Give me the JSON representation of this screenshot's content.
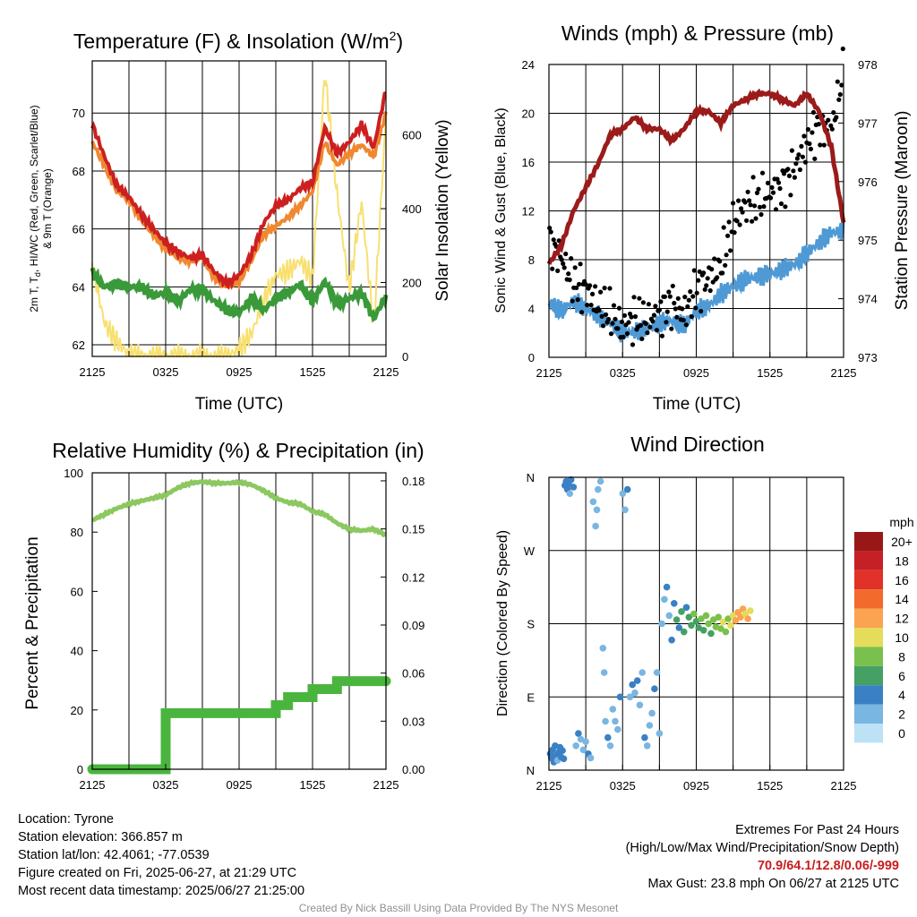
{
  "colors": {
    "red": "#cc2020",
    "orange": "#f08830",
    "green": "#3a9a3a",
    "scarlet": "#5cb848",
    "yellow": "#f8e070",
    "blue": "#4f9ad5",
    "maroon": "#9b1b1b",
    "rh_green": "#8cc860",
    "precip_green": "#4ab53e"
  },
  "chart_data": [
    {
      "id": "temperature",
      "type": "line",
      "title": "Temperature (F) & Insolation (W/m",
      "title_sup": "2",
      "title_close": ")",
      "xlabel": "Time (UTC)",
      "ylabel_line1": "2m T, T",
      "ylabel_sub": "d",
      "ylabel_line1_rest": ", HI/WC (Red, Green, Scarlet/Blue)",
      "ylabel_line2": "& 9m T (Orange)",
      "ylabel_right": "Solar Insolation (Yellow)",
      "x_ticks": [
        "2125",
        "0325",
        "0925",
        "1525",
        "2125"
      ],
      "ylim": [
        61.6,
        71.8
      ],
      "y_ticks": [
        62,
        64,
        66,
        68,
        70
      ],
      "y2lim": [
        0,
        800
      ],
      "y2_ticks": [
        0,
        200,
        400,
        600
      ],
      "hours": [
        0,
        1,
        2,
        3,
        4,
        5,
        6,
        7,
        8,
        9,
        10,
        11,
        12,
        13,
        14,
        15,
        16,
        17,
        18,
        19,
        20,
        21,
        22,
        23,
        24
      ],
      "series": [
        {
          "name": "2m T",
          "color_key": "red",
          "values": [
            69.6,
            68.5,
            67.5,
            67.1,
            66.5,
            66.0,
            65.5,
            65.2,
            65.0,
            65.1,
            64.5,
            64.1,
            64.4,
            65.1,
            66.2,
            66.8,
            67.0,
            67.4,
            67.6,
            69.5,
            68.6,
            69.0,
            69.6,
            68.8,
            70.8
          ]
        },
        {
          "name": "9m T",
          "color_key": "orange",
          "values": [
            69.0,
            68.2,
            67.3,
            67.0,
            66.3,
            65.8,
            65.3,
            65.0,
            64.9,
            65.0,
            64.3,
            64.0,
            64.2,
            64.9,
            65.8,
            66.1,
            66.4,
            66.8,
            67.3,
            69.0,
            68.2,
            68.6,
            68.9,
            68.5,
            70.0
          ]
        },
        {
          "name": "Td",
          "color_key": "green",
          "values": [
            64.5,
            64.0,
            64.1,
            64.0,
            64.0,
            63.7,
            63.8,
            63.5,
            63.9,
            63.9,
            63.5,
            63.2,
            63.1,
            63.6,
            63.2,
            63.6,
            63.8,
            64.1,
            63.5,
            64.2,
            63.4,
            63.6,
            63.8,
            62.9,
            63.7
          ]
        },
        {
          "name": "Solar",
          "color_key": "yellow",
          "values": [
            250,
            90,
            40,
            5,
            0,
            0,
            0,
            0,
            0,
            0,
            0,
            0,
            20,
            60,
            150,
            220,
            230,
            260,
            210,
            770,
            440,
            180,
            420,
            80,
            650
          ]
        }
      ]
    },
    {
      "id": "winds",
      "type": "line",
      "title": "Winds (mph) & Pressure (mb)",
      "xlabel": "Time (UTC)",
      "ylabel": "Sonic Wind & Gust (Blue, Black)",
      "ylabel_right": "Station Pressure (Maroon)",
      "x_ticks": [
        "2125",
        "0325",
        "0925",
        "1525",
        "2125"
      ],
      "ylim": [
        0,
        24
      ],
      "y_ticks": [
        0,
        4,
        8,
        12,
        16,
        20,
        24
      ],
      "y2lim": [
        973,
        978
      ],
      "y2_ticks": [
        973,
        974,
        975,
        976,
        977,
        978
      ],
      "hours": [
        0,
        1,
        2,
        3,
        4,
        5,
        6,
        7,
        8,
        9,
        10,
        11,
        12,
        13,
        14,
        15,
        16,
        17,
        18,
        19,
        20,
        21,
        22,
        23,
        24
      ],
      "series": [
        {
          "name": "Sonic Wind",
          "color_key": "blue",
          "values": [
            4.5,
            3.8,
            4.6,
            4.0,
            3.4,
            2.8,
            2.0,
            2.1,
            2.3,
            2.8,
            3.0,
            2.6,
            3.8,
            4.2,
            5.2,
            5.8,
            6.4,
            6.6,
            6.8,
            7.2,
            7.6,
            8.5,
            9.4,
            10.2,
            10.4
          ]
        },
        {
          "name": "Gust",
          "color_key": "gust",
          "values": [
            9.5,
            8.2,
            6.0,
            5.6,
            4.2,
            3.5,
            2.4,
            3.2,
            2.9,
            3.6,
            4.5,
            3.5,
            5.6,
            6.4,
            7.5,
            11.0,
            12.5,
            12.8,
            13.5,
            14.0,
            15.5,
            17.5,
            19.0,
            18.5,
            23.5
          ]
        },
        {
          "name": "Station Pressure",
          "color_key": "maroon",
          "values": [
            974.6,
            974.9,
            975.5,
            975.9,
            976.3,
            976.8,
            976.9,
            977.1,
            976.9,
            976.9,
            976.7,
            976.9,
            977.2,
            977.2,
            977.0,
            977.3,
            977.4,
            977.5,
            977.5,
            977.4,
            977.3,
            977.5,
            977.2,
            976.6,
            975.3
          ]
        }
      ]
    },
    {
      "id": "humidity",
      "type": "line",
      "title": "Relative Humidity (%) & Precipitation (in)",
      "ylabel": "Percent & Precipitation",
      "x_ticks": [
        "2125",
        "0325",
        "0925",
        "1525",
        "2125"
      ],
      "ylim": [
        0,
        100
      ],
      "y_ticks": [
        0,
        20,
        40,
        60,
        80,
        100
      ],
      "y2lim": [
        0,
        0.185
      ],
      "y2_ticks": [
        "0.00",
        "0.03",
        "0.06",
        "0.09",
        "0.12",
        "0.15",
        "0.18"
      ],
      "hours": [
        0,
        1,
        2,
        3,
        4,
        5,
        6,
        7,
        8,
        9,
        10,
        11,
        12,
        13,
        14,
        15,
        16,
        17,
        18,
        19,
        20,
        21,
        22,
        23,
        24
      ],
      "series": [
        {
          "name": "Relative Humidity",
          "color_key": "rh_green",
          "values": [
            84,
            86,
            88,
            89.5,
            90.5,
            91.5,
            92.5,
            95,
            96.5,
            97,
            96.5,
            96.5,
            96.8,
            96,
            94,
            91.5,
            90,
            89.5,
            87,
            86,
            83,
            81,
            80.5,
            81,
            79
          ]
        },
        {
          "name": "Precipitation",
          "color_key": "precip_green",
          "values": [
            0,
            0,
            0,
            0,
            0,
            0,
            0.035,
            0.035,
            0.035,
            0.035,
            0.035,
            0.035,
            0.035,
            0.035,
            0.035,
            0.04,
            0.045,
            0.045,
            0.05,
            0.05,
            0.055,
            0.055,
            0.055,
            0.055,
            0.055
          ]
        }
      ]
    },
    {
      "id": "direction",
      "type": "scatter",
      "title": "Wind Direction",
      "ylabel": "Direction (Colored By Speed)",
      "x_ticks": [
        "2125",
        "0325",
        "0925",
        "1525",
        "2125"
      ],
      "y_ticks": [
        "N",
        "E",
        "S",
        "W",
        "N"
      ],
      "ylim": [
        0,
        360
      ],
      "colorbar": {
        "unit": "mph",
        "labels": [
          "20+",
          "18",
          "16",
          "14",
          "12",
          "10",
          "8",
          "6",
          "4",
          "2",
          "0"
        ],
        "colors": [
          "#981818",
          "#c42026",
          "#e03228",
          "#f26a2c",
          "#fba350",
          "#e4dc5a",
          "#7ac04c",
          "#45a063",
          "#3a80c4",
          "#79b6e2",
          "#bde2f6"
        ]
      },
      "points": [
        [
          0.1,
          20,
          4
        ],
        [
          0.2,
          15,
          4
        ],
        [
          0.3,
          25,
          3
        ],
        [
          0.4,
          10,
          4
        ],
        [
          0.5,
          30,
          3
        ],
        [
          0.6,
          18,
          4
        ],
        [
          0.7,
          12,
          2
        ],
        [
          0.8,
          22,
          4
        ],
        [
          0.9,
          28,
          3
        ],
        [
          1.0,
          16,
          4
        ],
        [
          1.1,
          24,
          3
        ],
        [
          1.2,
          14,
          4
        ],
        [
          1.3,
          350,
          4
        ],
        [
          1.4,
          355,
          3
        ],
        [
          1.5,
          345,
          4
        ],
        [
          1.6,
          352,
          3
        ],
        [
          1.7,
          340,
          2
        ],
        [
          1.8,
          357,
          4
        ],
        [
          2.0,
          348,
          3
        ],
        [
          2.2,
          30,
          2
        ],
        [
          2.4,
          45,
          3
        ],
        [
          2.6,
          38,
          2
        ],
        [
          2.8,
          25,
          1
        ],
        [
          3.0,
          35,
          2
        ],
        [
          3.2,
          20,
          3
        ],
        [
          3.4,
          15,
          2
        ],
        [
          3.6,
          330,
          2
        ],
        [
          3.8,
          300,
          1
        ],
        [
          3.9,
          320,
          2
        ],
        [
          4.0,
          345,
          2
        ],
        [
          4.2,
          355,
          1
        ],
        [
          4.4,
          150,
          1
        ],
        [
          4.5,
          120,
          1
        ],
        [
          4.6,
          60,
          2
        ],
        [
          4.8,
          40,
          3
        ],
        [
          5.0,
          30,
          2
        ],
        [
          5.2,
          75,
          1
        ],
        [
          5.4,
          60,
          2
        ],
        [
          5.6,
          50,
          1
        ],
        [
          5.8,
          90,
          3
        ],
        [
          6.0,
          340,
          2
        ],
        [
          6.2,
          320,
          1
        ],
        [
          6.4,
          345,
          3
        ],
        [
          6.6,
          90,
          2
        ],
        [
          6.8,
          105,
          3
        ],
        [
          7.0,
          95,
          2
        ],
        [
          7.2,
          110,
          3
        ],
        [
          7.4,
          80,
          2
        ],
        [
          7.6,
          120,
          1
        ],
        [
          7.8,
          40,
          3
        ],
        [
          8.0,
          30,
          2
        ],
        [
          8.2,
          55,
          1
        ],
        [
          8.4,
          70,
          2
        ],
        [
          8.6,
          100,
          3
        ],
        [
          8.8,
          120,
          2
        ],
        [
          9.0,
          45,
          1
        ],
        [
          9.2,
          180,
          2
        ],
        [
          9.4,
          210,
          1
        ],
        [
          9.6,
          225,
          3
        ],
        [
          9.8,
          190,
          2
        ],
        [
          10.0,
          160,
          3
        ],
        [
          10.2,
          205,
          4
        ],
        [
          10.4,
          185,
          5
        ],
        [
          10.6,
          175,
          3
        ],
        [
          10.8,
          195,
          6
        ],
        [
          11.0,
          170,
          5
        ],
        [
          11.2,
          200,
          4
        ],
        [
          11.4,
          188,
          6
        ],
        [
          11.6,
          178,
          5
        ],
        [
          11.8,
          192,
          7
        ],
        [
          12.0,
          183,
          6
        ],
        [
          12.2,
          175,
          5
        ],
        [
          12.4,
          186,
          7
        ],
        [
          12.6,
          172,
          6
        ],
        [
          12.8,
          190,
          7
        ],
        [
          13.0,
          180,
          8
        ],
        [
          13.2,
          168,
          6
        ],
        [
          13.4,
          185,
          7
        ],
        [
          13.6,
          176,
          8
        ],
        [
          13.8,
          188,
          7
        ],
        [
          14.0,
          174,
          8
        ],
        [
          14.2,
          182,
          9
        ],
        [
          14.4,
          170,
          8
        ],
        [
          14.6,
          186,
          7
        ],
        [
          14.8,
          178,
          9
        ],
        [
          15.0,
          190,
          10
        ],
        [
          15.2,
          184,
          11
        ],
        [
          15.4,
          194,
          12
        ],
        [
          15.6,
          188,
          11
        ],
        [
          15.8,
          198,
          12
        ],
        [
          16.0,
          192,
          10
        ],
        [
          16.2,
          186,
          11
        ],
        [
          16.4,
          196,
          9
        ]
      ]
    }
  ],
  "info": {
    "location": "Location: Tyrone",
    "elevation": "Station elevation: 366.857 m",
    "latlon": "Station lat/lon: 42.4061; -77.0539",
    "created": "Figure created on Fri, 2025-06-27, at 21:29 UTC",
    "recent": "Most recent data timestamp: 2025/06/27 21:25:00",
    "extremes_title": "Extremes For Past 24 Hours",
    "extremes_sub": "(High/Low/Max Wind/Precipitation/Snow Depth)",
    "extremes_values": "70.9/64.1/12.8/0.06/-999",
    "max_gust": "Max Gust: 23.8 mph On 06/27 at 2125 UTC"
  },
  "credit": "Created By Nick Bassill Using Data Provided By The NYS Mesonet"
}
